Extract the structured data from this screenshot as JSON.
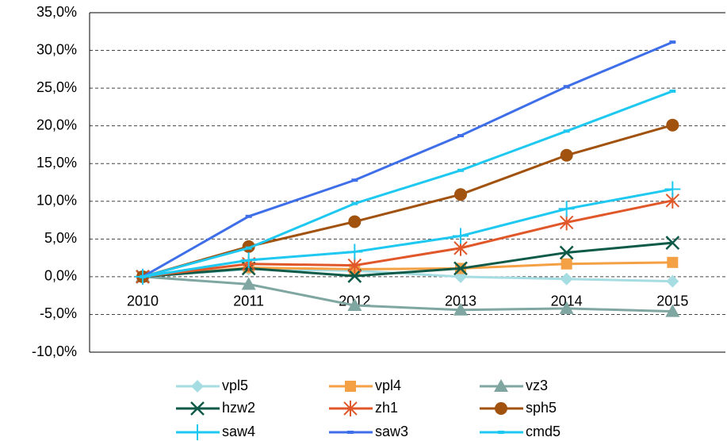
{
  "chart_data": {
    "type": "line",
    "categories": [
      "2010",
      "2011",
      "2012",
      "2013",
      "2014",
      "2015"
    ],
    "ylim": [
      -10,
      35
    ],
    "yticks": [
      {
        "value": -10,
        "label": "-10,0%"
      },
      {
        "value": -5,
        "label": "-5,0%"
      },
      {
        "value": 0,
        "label": "0,0%"
      },
      {
        "value": 5,
        "label": "5,0%"
      },
      {
        "value": 10,
        "label": "10,0%"
      },
      {
        "value": 15,
        "label": "15,0%"
      },
      {
        "value": 20,
        "label": "20,0%"
      },
      {
        "value": 25,
        "label": "25,0%"
      },
      {
        "value": 30,
        "label": "30,0%"
      },
      {
        "value": 35,
        "label": "35,0%"
      }
    ],
    "grid": true,
    "legend": "bottom",
    "series": [
      {
        "name": "vpl5",
        "color": "#a6dde3",
        "marker": "diamond",
        "values": [
          0,
          1.0,
          0.8,
          0.0,
          -0.3,
          -0.6
        ]
      },
      {
        "name": "vpl4",
        "color": "#f4a045",
        "marker": "square",
        "values": [
          0,
          1.2,
          1.0,
          1.1,
          1.7,
          1.9
        ]
      },
      {
        "name": "vz3",
        "color": "#7fa6a1",
        "marker": "triangle",
        "values": [
          0,
          -1.0,
          -3.8,
          -4.4,
          -4.2,
          -4.6
        ]
      },
      {
        "name": "hzw2",
        "color": "#0d5a48",
        "marker": "x",
        "values": [
          0,
          1.1,
          0.1,
          1.1,
          3.2,
          4.5
        ]
      },
      {
        "name": "zh1",
        "color": "#e0582a",
        "marker": "star",
        "values": [
          0,
          1.7,
          1.5,
          3.8,
          7.2,
          10.1
        ]
      },
      {
        "name": "sph5",
        "color": "#a0520e",
        "marker": "circle",
        "values": [
          0,
          4.0,
          7.3,
          10.9,
          16.1,
          20.1
        ]
      },
      {
        "name": "saw4",
        "color": "#1ec8f0",
        "marker": "plus",
        "values": [
          0,
          2.2,
          3.3,
          5.4,
          9.0,
          11.6
        ]
      },
      {
        "name": "saw3",
        "color": "#3e6ee8",
        "marker": "dash",
        "values": [
          0,
          8.0,
          12.8,
          18.7,
          25.2,
          31.1
        ]
      },
      {
        "name": "cmd5",
        "color": "#1ec8f0",
        "marker": "dash",
        "values": [
          0,
          3.8,
          9.7,
          14.1,
          19.3,
          24.6
        ]
      }
    ]
  }
}
